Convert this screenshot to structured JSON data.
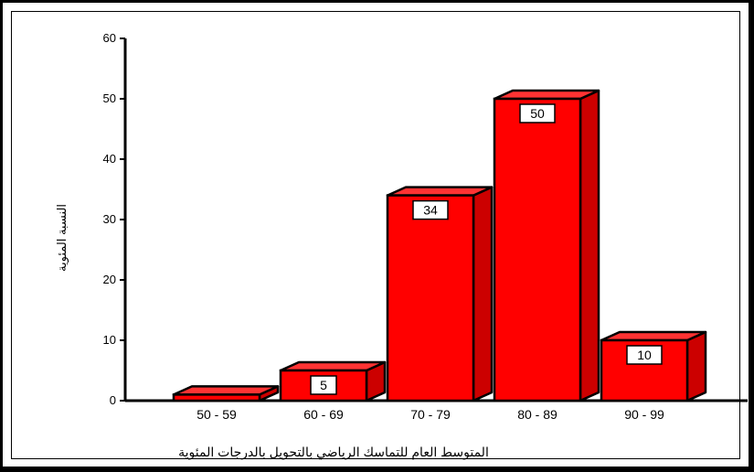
{
  "chart_data": {
    "type": "bar",
    "categories": [
      "50 - 59",
      "60 - 69",
      "70 - 79",
      "80 - 89",
      "90 - 99"
    ],
    "values": [
      1,
      5,
      34,
      50,
      10
    ],
    "data_labels": [
      "",
      "5",
      "34",
      "50",
      "10"
    ],
    "title": "المتوسط العام للتماسك الرياضي بالتحويل بالدرجات المئوية",
    "xlabel": "",
    "ylabel": "النسبة المئوية",
    "ylim": [
      0,
      60
    ],
    "yticks": [
      "0",
      "10",
      "20",
      "30",
      "40",
      "50",
      "60"
    ],
    "style": "3d",
    "grid": false,
    "legend": "none",
    "bar_color": "#ff0000",
    "bar_top_color": "#ff3333",
    "bar_side_color": "#cc0000"
  }
}
